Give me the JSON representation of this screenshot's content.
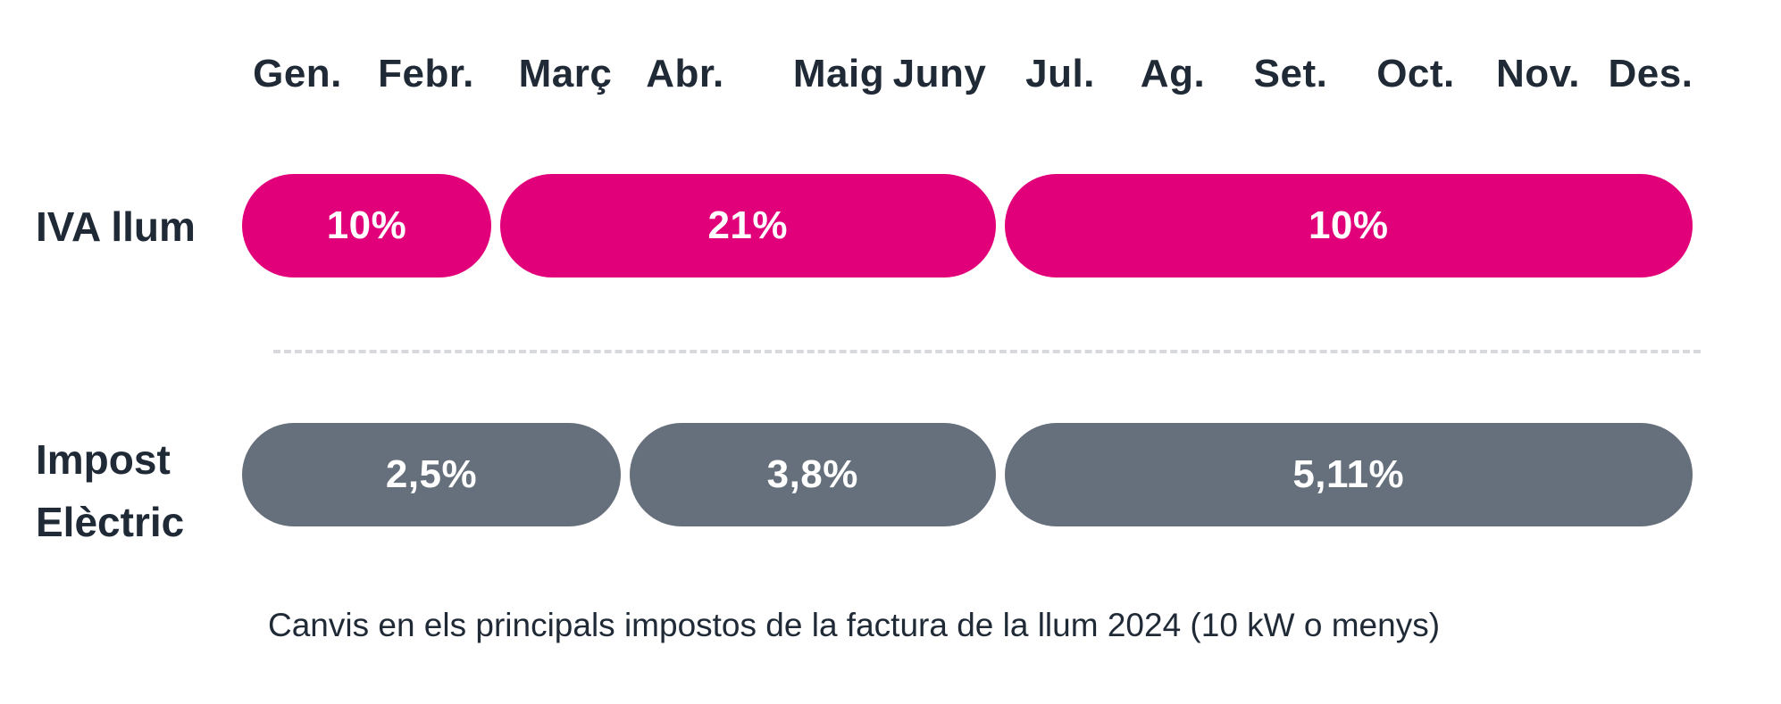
{
  "chart_data": {
    "type": "timeline",
    "months": [
      "Gen.",
      "Febr.",
      "Març",
      "Abr.",
      "Maig",
      "Juny",
      "Jul.",
      "Ag.",
      "Set.",
      "Oct.",
      "Nov.",
      "Des."
    ],
    "rows": [
      {
        "label_lines": [
          "IVA llum"
        ],
        "color": "#e2007a",
        "segments": [
          {
            "start_month": 1,
            "end_month": 2,
            "label": "10%"
          },
          {
            "start_month": 3,
            "end_month": 6,
            "label": "21%"
          },
          {
            "start_month": 7,
            "end_month": 12,
            "label": "10%"
          }
        ]
      },
      {
        "label_lines": [
          "Impost",
          "Elèctric"
        ],
        "color": "#66707c",
        "segments": [
          {
            "start_month": 1,
            "end_month": 3,
            "label": "2,5%"
          },
          {
            "start_month": 4,
            "end_month": 6,
            "label": "3,8%"
          },
          {
            "start_month": 7,
            "end_month": 12,
            "label": "5,11%"
          }
        ]
      }
    ],
    "caption": "Canvis en els principals impostos de la factura de la llum 2024 (10 kW o menys)"
  }
}
